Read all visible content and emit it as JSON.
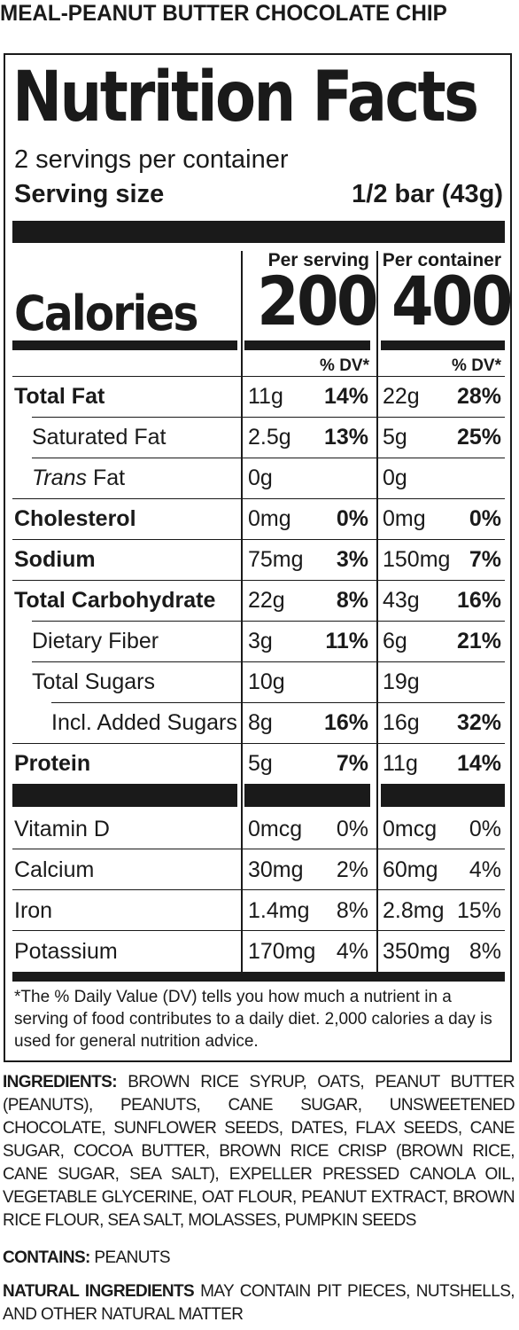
{
  "product_title": "MEAL-PEANUT BUTTER CHOCOLATE CHIP",
  "panel": {
    "title": "Nutrition Facts",
    "servings_per_container": "2 servings per container",
    "serving_size_label": "Serving size",
    "serving_size_value": "1/2 bar (43g)",
    "per_serving_label": "Per serving",
    "per_container_label": "Per container",
    "calories_label": "Calories",
    "calories_per_serving": "200",
    "calories_per_container": "400",
    "dv_label": "% DV*",
    "rows": [
      {
        "name": "Total Fat",
        "s_amt": "11g",
        "s_dv": "14%",
        "c_amt": "22g",
        "c_dv": "28%"
      },
      {
        "name": "Saturated Fat",
        "s_amt": "2.5g",
        "s_dv": "13%",
        "c_amt": "5g",
        "c_dv": "25%"
      },
      {
        "name_italic": "Trans",
        "name": " Fat",
        "s_amt": "0g",
        "s_dv": "",
        "c_amt": "0g",
        "c_dv": ""
      },
      {
        "name": "Cholesterol",
        "s_amt": "0mg",
        "s_dv": "0%",
        "c_amt": "0mg",
        "c_dv": "0%"
      },
      {
        "name": "Sodium",
        "s_amt": "75mg",
        "s_dv": "3%",
        "c_amt": "150mg",
        "c_dv": "7%"
      },
      {
        "name": "Total Carbohydrate",
        "s_amt": "22g",
        "s_dv": "8%",
        "c_amt": "43g",
        "c_dv": "16%"
      },
      {
        "name": "Dietary Fiber",
        "s_amt": "3g",
        "s_dv": "11%",
        "c_amt": "6g",
        "c_dv": "21%"
      },
      {
        "name": "Total Sugars",
        "s_amt": "10g",
        "s_dv": "",
        "c_amt": "19g",
        "c_dv": ""
      },
      {
        "name": "Incl. Added Sugars",
        "s_amt": "8g",
        "s_dv": "16%",
        "c_amt": "16g",
        "c_dv": "32%"
      },
      {
        "name": "Protein",
        "s_amt": "5g",
        "s_dv": "7%",
        "c_amt": "11g",
        "c_dv": "14%"
      }
    ],
    "vitamins": [
      {
        "name": "Vitamin D",
        "s_amt": "0mcg",
        "s_dv": "0%",
        "c_amt": "0mcg",
        "c_dv": "0%"
      },
      {
        "name": "Calcium",
        "s_amt": "30mg",
        "s_dv": "2%",
        "c_amt": "60mg",
        "c_dv": "4%"
      },
      {
        "name": "Iron",
        "s_amt": "1.4mg",
        "s_dv": "8%",
        "c_amt": "2.8mg",
        "c_dv": "15%"
      },
      {
        "name": "Potassium",
        "s_amt": "170mg",
        "s_dv": "4%",
        "c_amt": "350mg",
        "c_dv": "8%"
      }
    ],
    "footnote": "*The % Daily Value (DV) tells you how much a nutrient in a serving of food contributes to a daily diet. 2,000 calories a day is used for general nutrition advice."
  },
  "ingredients": {
    "label": "INGREDIENTS:",
    "text": " BROWN RICE SYRUP, OATS, PEANUT BUTTER (PEANUTS), PEANUTS, CANE SUGAR, UNSWEETENED CHOCOLATE, SUNFLOWER SEEDS, DATES, FLAX SEEDS, CANE SUGAR, COCOA BUTTER, BROWN RICE CRISP (BROWN RICE, CANE SUGAR, SEA SALT), EXPELLER PRESSED CANOLA OIL, VEGETABLE GLYCERINE, OAT FLOUR, PEANUT EXTRACT, BROWN RICE FLOUR, SEA SALT, MOLASSES, PUMPKIN SEEDS"
  },
  "contains": {
    "label": "CONTAINS:",
    "text": " PEANUTS"
  },
  "natural": {
    "label": "NATURAL INGREDIENTS",
    "text": " MAY CONTAIN PIT PIECES, NUTSHELLS, AND OTHER NATURAL MATTER"
  }
}
